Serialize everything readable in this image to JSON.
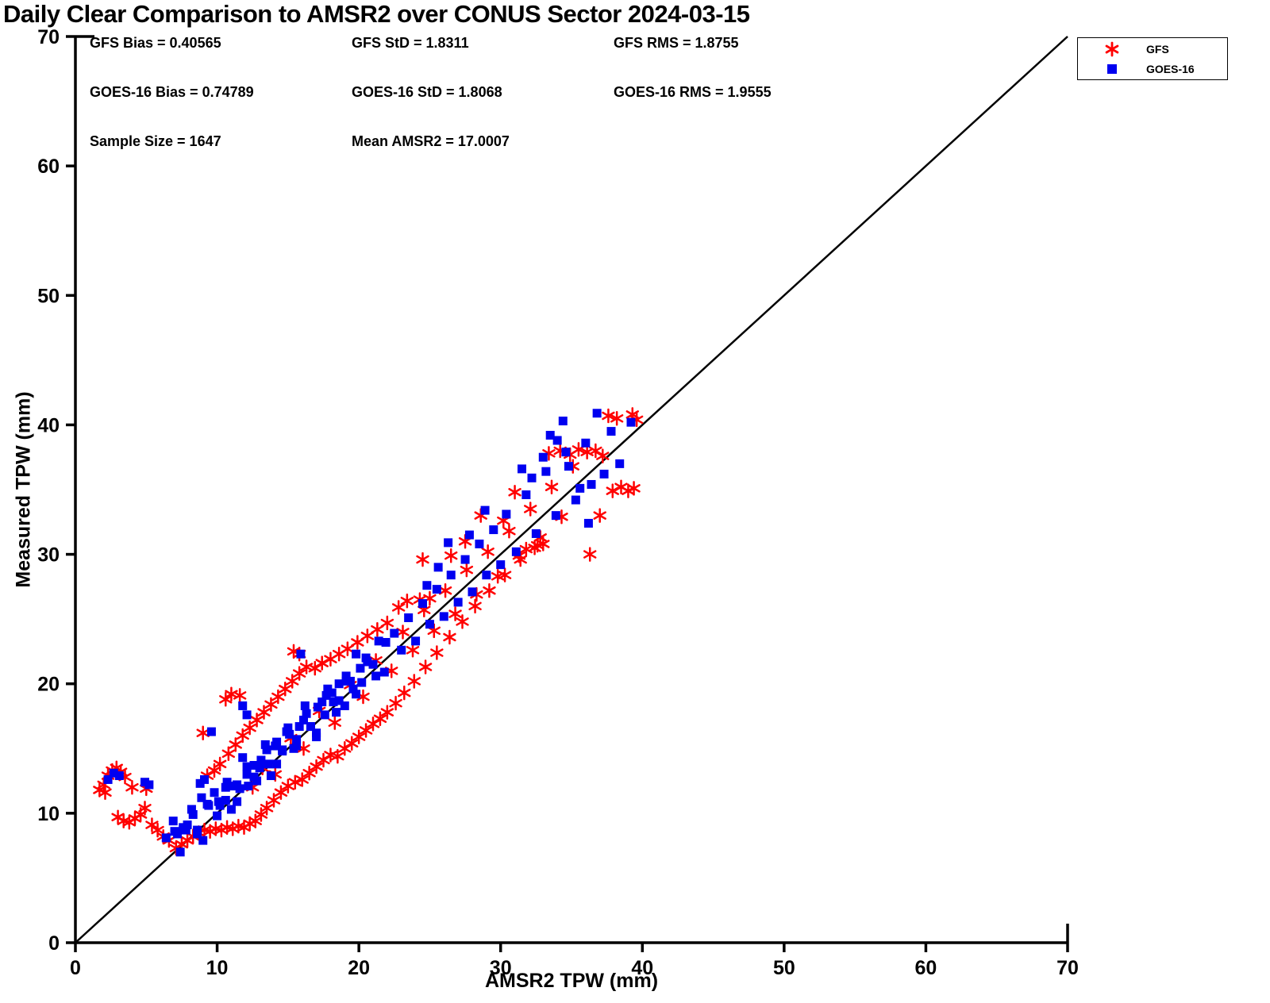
{
  "title": "Daily Clear Comparison to AMSR2 over CONUS Sector 2024-03-15",
  "stats": {
    "gfs_bias": "GFS Bias = 0.40565",
    "gfs_std": "GFS StD = 1.8311",
    "gfs_rms": "GFS RMS = 1.8755",
    "goes_bias": "GOES-16 Bias = 0.74789",
    "goes_std": "GOES-16 StD = 1.8068",
    "goes_rms": "GOES-16 RMS = 1.9555",
    "sample_size": "Sample Size = 1647",
    "mean_amsr2": "Mean AMSR2 = 17.0007"
  },
  "legend": {
    "items": [
      {
        "label": "GFS",
        "marker": "asterisk",
        "color": "#FF0000"
      },
      {
        "label": "GOES-16",
        "marker": "square",
        "color": "#0000F0"
      }
    ]
  },
  "chart_data": {
    "type": "scatter",
    "title": "Daily Clear Comparison to AMSR2 over CONUS Sector 2024-03-15",
    "xlabel": "AMSR2 TPW (mm)",
    "ylabel": "Measured TPW (mm)",
    "xlim": [
      0,
      70
    ],
    "ylim": [
      0,
      70
    ],
    "xticks": [
      0,
      10,
      20,
      30,
      40,
      50,
      60,
      70
    ],
    "yticks": [
      0,
      10,
      20,
      30,
      40,
      50,
      60,
      70
    ],
    "grid": false,
    "legend_position": "top-right",
    "reference_line": {
      "from": [
        0,
        0
      ],
      "to": [
        70,
        70
      ],
      "color": "#000000",
      "width": 2.5
    },
    "annotations": {
      "gfs_bias": 0.40565,
      "gfs_std": 1.8311,
      "gfs_rms": 1.8755,
      "goes16_bias": 0.74789,
      "goes16_std": 1.8068,
      "goes16_rms": 1.9555,
      "sample_size": 1647,
      "mean_amsr2": 17.0007
    },
    "series": [
      {
        "name": "GFS",
        "marker": "asterisk",
        "color": "#FF0000",
        "points": [
          [
            7.1,
            7.3
          ],
          [
            7.5,
            7.6
          ],
          [
            7.9,
            7.9
          ],
          [
            8.3,
            8.2
          ],
          [
            8.7,
            8.5
          ],
          [
            9.1,
            8.7
          ],
          [
            9.5,
            8.6
          ],
          [
            9.9,
            8.8
          ],
          [
            10.3,
            8.7
          ],
          [
            10.7,
            8.9
          ],
          [
            11.1,
            8.8
          ],
          [
            11.5,
            9.0
          ],
          [
            11.9,
            8.9
          ],
          [
            12.3,
            9.2
          ],
          [
            12.7,
            9.4
          ],
          [
            13.1,
            9.9
          ],
          [
            13.5,
            10.4
          ],
          [
            14.0,
            11.0
          ],
          [
            14.5,
            11.6
          ],
          [
            15.0,
            12.1
          ],
          [
            15.5,
            12.4
          ],
          [
            16.0,
            12.6
          ],
          [
            16.5,
            13.1
          ],
          [
            17.0,
            13.6
          ],
          [
            17.5,
            14.1
          ],
          [
            18.0,
            14.5
          ],
          [
            18.5,
            14.4
          ],
          [
            19.0,
            15.0
          ],
          [
            19.5,
            15.4
          ],
          [
            20.0,
            15.9
          ],
          [
            20.5,
            16.4
          ],
          [
            21.0,
            16.9
          ],
          [
            21.5,
            17.3
          ],
          [
            22.0,
            17.8
          ],
          [
            22.6,
            18.5
          ],
          [
            23.2,
            19.3
          ],
          [
            23.9,
            20.2
          ],
          [
            24.7,
            21.3
          ],
          [
            25.5,
            22.4
          ],
          [
            26.4,
            23.6
          ],
          [
            27.3,
            24.8
          ],
          [
            28.2,
            26.0
          ],
          [
            29.2,
            27.2
          ],
          [
            30.3,
            28.4
          ],
          [
            31.4,
            29.6
          ],
          [
            32.6,
            30.7
          ],
          [
            9.3,
            12.9
          ],
          [
            9.8,
            13.3
          ],
          [
            10.2,
            13.8
          ],
          [
            10.8,
            14.6
          ],
          [
            11.3,
            15.3
          ],
          [
            11.8,
            16.0
          ],
          [
            12.3,
            16.6
          ],
          [
            12.8,
            17.2
          ],
          [
            13.3,
            17.8
          ],
          [
            13.8,
            18.4
          ],
          [
            14.3,
            19.0
          ],
          [
            14.8,
            19.6
          ],
          [
            15.3,
            20.2
          ],
          [
            15.8,
            20.8
          ],
          [
            16.3,
            21.3
          ],
          [
            16.9,
            21.2
          ],
          [
            17.4,
            21.6
          ],
          [
            18.0,
            21.9
          ],
          [
            18.6,
            22.3
          ],
          [
            19.2,
            22.7
          ],
          [
            19.9,
            23.2
          ],
          [
            20.6,
            23.7
          ],
          [
            21.3,
            24.2
          ],
          [
            22.0,
            24.7
          ],
          [
            1.7,
            11.8
          ],
          [
            2.0,
            12.2
          ],
          [
            2.3,
            12.9
          ],
          [
            2.6,
            13.3
          ],
          [
            2.9,
            13.5
          ],
          [
            3.2,
            13.2
          ],
          [
            3.5,
            12.8
          ],
          [
            2.1,
            11.6
          ],
          [
            3.0,
            9.7
          ],
          [
            3.4,
            9.4
          ],
          [
            3.8,
            9.3
          ],
          [
            4.2,
            9.6
          ],
          [
            4.6,
            9.9
          ],
          [
            5.0,
            11.9
          ],
          [
            5.4,
            9.1
          ],
          [
            5.8,
            8.7
          ],
          [
            6.2,
            8.2
          ],
          [
            6.6,
            7.9
          ],
          [
            4.0,
            12.0
          ],
          [
            4.9,
            10.4
          ],
          [
            12.5,
            12.0
          ],
          [
            13.2,
            13.5
          ],
          [
            14.1,
            13.0
          ],
          [
            15.2,
            15.8
          ],
          [
            16.1,
            15.0
          ],
          [
            17.2,
            17.9
          ],
          [
            18.3,
            17.0
          ],
          [
            19.4,
            19.9
          ],
          [
            20.3,
            19.0
          ],
          [
            21.2,
            21.8
          ],
          [
            22.3,
            21.0
          ],
          [
            23.1,
            24.0
          ],
          [
            23.8,
            22.6
          ],
          [
            24.6,
            25.7
          ],
          [
            25.3,
            24.1
          ],
          [
            26.1,
            27.2
          ],
          [
            26.8,
            25.4
          ],
          [
            27.6,
            28.8
          ],
          [
            28.3,
            26.9
          ],
          [
            29.1,
            30.2
          ],
          [
            29.8,
            28.3
          ],
          [
            30.6,
            31.8
          ],
          [
            31.3,
            29.9
          ],
          [
            32.1,
            33.5
          ],
          [
            32.8,
            31.3
          ],
          [
            33.6,
            35.2
          ],
          [
            34.3,
            32.9
          ],
          [
            35.1,
            36.8
          ],
          [
            9.0,
            16.2
          ],
          [
            10.6,
            18.8
          ],
          [
            11.0,
            19.2
          ],
          [
            11.6,
            19.1
          ],
          [
            15.4,
            22.5
          ],
          [
            15.8,
            22.3
          ],
          [
            24.3,
            26.5
          ],
          [
            25.0,
            26.6
          ],
          [
            24.5,
            29.6
          ],
          [
            27.5,
            31.0
          ],
          [
            28.6,
            33.0
          ],
          [
            30.2,
            32.6
          ],
          [
            31.0,
            34.8
          ],
          [
            33.4,
            37.8
          ],
          [
            34.2,
            38.0
          ],
          [
            34.9,
            37.7
          ],
          [
            35.5,
            38.1
          ],
          [
            36.1,
            37.9
          ],
          [
            36.7,
            38.0
          ],
          [
            37.2,
            37.6
          ],
          [
            37.6,
            40.7
          ],
          [
            38.2,
            40.5
          ],
          [
            39.3,
            40.8
          ],
          [
            39.6,
            40.4
          ],
          [
            36.3,
            30.0
          ],
          [
            37.0,
            33.0
          ],
          [
            37.9,
            34.9
          ],
          [
            38.5,
            35.2
          ],
          [
            39.0,
            34.9
          ],
          [
            39.4,
            35.1
          ],
          [
            33.0,
            30.8
          ],
          [
            32.4,
            30.5
          ],
          [
            31.8,
            30.4
          ],
          [
            23.4,
            26.4
          ],
          [
            22.8,
            25.9
          ],
          [
            26.5,
            29.9
          ]
        ]
      },
      {
        "name": "GOES-16",
        "marker": "square",
        "color": "#0000F0",
        "points": [
          [
            7.0,
            8.6
          ],
          [
            7.4,
            7.0
          ],
          [
            7.8,
            8.7
          ],
          [
            8.2,
            10.3
          ],
          [
            8.6,
            8.7
          ],
          [
            9.0,
            7.9
          ],
          [
            9.4,
            10.6
          ],
          [
            9.8,
            11.6
          ],
          [
            10.2,
            10.6
          ],
          [
            10.6,
            12.0
          ],
          [
            11.0,
            10.3
          ],
          [
            11.4,
            12.2
          ],
          [
            11.8,
            14.3
          ],
          [
            12.2,
            12.1
          ],
          [
            12.6,
            13.7
          ],
          [
            13.0,
            13.5
          ],
          [
            13.4,
            15.3
          ],
          [
            13.8,
            12.9
          ],
          [
            14.2,
            15.5
          ],
          [
            14.6,
            14.9
          ],
          [
            15.0,
            16.6
          ],
          [
            15.4,
            15.0
          ],
          [
            15.8,
            16.7
          ],
          [
            16.2,
            18.3
          ],
          [
            16.6,
            16.7
          ],
          [
            17.0,
            15.9
          ],
          [
            17.4,
            18.6
          ],
          [
            17.8,
            19.6
          ],
          [
            18.2,
            18.6
          ],
          [
            18.6,
            20.0
          ],
          [
            19.0,
            18.3
          ],
          [
            19.4,
            20.2
          ],
          [
            19.8,
            22.3
          ],
          [
            20.2,
            20.1
          ],
          [
            20.6,
            21.7
          ],
          [
            21.0,
            21.5
          ],
          [
            21.4,
            23.3
          ],
          [
            21.8,
            20.9
          ],
          [
            7.2,
            8.4
          ],
          [
            7.9,
            9.1
          ],
          [
            8.6,
            8.4
          ],
          [
            9.3,
            10.7
          ],
          [
            10.0,
            9.8
          ],
          [
            10.7,
            12.4
          ],
          [
            11.4,
            10.9
          ],
          [
            12.1,
            13.6
          ],
          [
            12.8,
            12.5
          ],
          [
            13.5,
            14.9
          ],
          [
            14.2,
            13.8
          ],
          [
            14.9,
            16.3
          ],
          [
            15.6,
            15.2
          ],
          [
            16.3,
            17.7
          ],
          [
            17.0,
            16.2
          ],
          [
            17.7,
            19.1
          ],
          [
            18.4,
            17.8
          ],
          [
            19.1,
            20.6
          ],
          [
            19.8,
            19.2
          ],
          [
            20.5,
            22.0
          ],
          [
            21.2,
            20.6
          ],
          [
            21.9,
            23.2
          ],
          [
            22.5,
            23.9
          ],
          [
            23.0,
            22.6
          ],
          [
            23.5,
            25.1
          ],
          [
            24.0,
            23.3
          ],
          [
            24.5,
            26.2
          ],
          [
            25.0,
            24.6
          ],
          [
            25.5,
            27.3
          ],
          [
            26.0,
            25.2
          ],
          [
            26.5,
            28.4
          ],
          [
            27.0,
            26.3
          ],
          [
            27.5,
            29.6
          ],
          [
            28.0,
            27.1
          ],
          [
            28.5,
            30.8
          ],
          [
            29.0,
            28.4
          ],
          [
            29.5,
            31.9
          ],
          [
            30.0,
            29.2
          ],
          [
            30.4,
            33.1
          ],
          [
            31.1,
            30.2
          ],
          [
            31.8,
            34.6
          ],
          [
            32.5,
            31.6
          ],
          [
            33.2,
            36.4
          ],
          [
            33.9,
            33.0
          ],
          [
            34.6,
            37.9
          ],
          [
            35.3,
            34.2
          ],
          [
            36.0,
            38.6
          ],
          [
            36.4,
            35.4
          ],
          [
            36.8,
            40.9
          ],
          [
            37.3,
            36.2
          ],
          [
            37.8,
            39.5
          ],
          [
            38.4,
            37.0
          ],
          [
            39.2,
            40.2
          ],
          [
            10.1,
            10.9
          ],
          [
            10.6,
            11.0
          ],
          [
            11.1,
            12.1
          ],
          [
            11.6,
            11.9
          ],
          [
            12.1,
            13.0
          ],
          [
            12.6,
            12.8
          ],
          [
            13.1,
            14.1
          ],
          [
            13.6,
            13.8
          ],
          [
            14.1,
            15.2
          ],
          [
            14.6,
            14.8
          ],
          [
            15.1,
            16.1
          ],
          [
            15.6,
            15.7
          ],
          [
            16.1,
            17.2
          ],
          [
            16.6,
            16.7
          ],
          [
            17.1,
            18.2
          ],
          [
            17.6,
            17.6
          ],
          [
            18.1,
            19.3
          ],
          [
            18.6,
            18.7
          ],
          [
            19.1,
            20.2
          ],
          [
            19.6,
            19.6
          ],
          [
            20.1,
            21.2
          ],
          [
            2.3,
            12.6
          ],
          [
            2.7,
            13.1
          ],
          [
            3.1,
            12.9
          ],
          [
            4.9,
            12.4
          ],
          [
            5.2,
            12.2
          ],
          [
            8.8,
            12.3
          ],
          [
            9.1,
            12.6
          ],
          [
            15.9,
            22.3
          ],
          [
            11.8,
            18.3
          ],
          [
            12.1,
            17.6
          ],
          [
            33.5,
            39.2
          ],
          [
            34.0,
            38.8
          ],
          [
            26.3,
            30.9
          ],
          [
            27.8,
            31.5
          ],
          [
            25.6,
            29.0
          ],
          [
            24.8,
            27.6
          ],
          [
            28.9,
            33.4
          ],
          [
            31.5,
            36.6
          ],
          [
            32.2,
            35.9
          ],
          [
            34.8,
            36.8
          ],
          [
            35.6,
            35.1
          ],
          [
            36.2,
            32.4
          ],
          [
            8.3,
            9.9
          ],
          [
            7.6,
            8.9
          ],
          [
            6.9,
            9.4
          ],
          [
            9.6,
            16.3
          ],
          [
            8.9,
            11.2
          ],
          [
            6.4,
            8.1
          ],
          [
            33.0,
            37.5
          ],
          [
            34.4,
            40.3
          ]
        ]
      }
    ]
  }
}
